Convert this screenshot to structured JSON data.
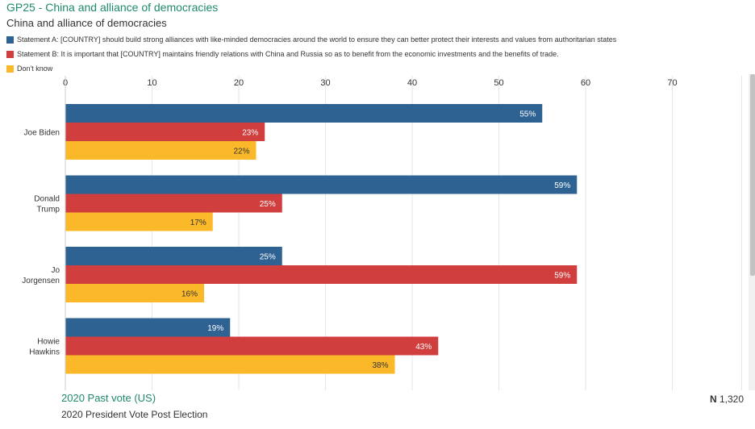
{
  "title": "GP25 - China and alliance of democracies",
  "subtitle": "China and alliance of democracies",
  "footer": {
    "label": "2020 Past vote (US)",
    "sub": "2020 President Vote Post Election",
    "n_prefix": "N",
    "n_value": "1,320"
  },
  "colors": {
    "a": "#2e6293",
    "b": "#d03e3d",
    "c": "#fbb829",
    "accent": "#1e8a6e"
  },
  "chart_data": {
    "type": "bar",
    "orientation": "horizontal",
    "categories": [
      "Joe Biden",
      "Donald Trump",
      "Jo Jorgensen",
      "Howie Hawkins"
    ],
    "category_lines": [
      [
        "Joe Biden"
      ],
      [
        "Donald",
        "Trump"
      ],
      [
        "Jo",
        "Jorgensen"
      ],
      [
        "Howie",
        "Hawkins"
      ]
    ],
    "series": [
      {
        "name": "Statement A: [COUNTRY] should build strong alliances with like-minded democracies around the world to ensure they can better protect their interests and values from authoritarian states",
        "color": "#2e6293",
        "values": [
          55,
          59,
          25,
          19
        ],
        "labels": [
          "55%",
          "59%",
          "25%",
          "19%"
        ]
      },
      {
        "name": "Statement B: It is important that [COUNTRY] maintains friendly relations with China and Russia so as to benefit from the economic investments and the benefits of trade.",
        "color": "#d03e3d",
        "values": [
          23,
          25,
          59,
          43
        ],
        "labels": [
          "23%",
          "25%",
          "59%",
          "43%"
        ]
      },
      {
        "name": "Don't know",
        "color": "#fbb829",
        "values": [
          22,
          17,
          16,
          38
        ],
        "labels": [
          "22%",
          "17%",
          "16%",
          "38%"
        ]
      }
    ],
    "xlim": [
      0,
      78
    ],
    "xticks": [
      0,
      10,
      20,
      30,
      40,
      50,
      60,
      70
    ],
    "grid": true,
    "legend_position": "top-left"
  }
}
